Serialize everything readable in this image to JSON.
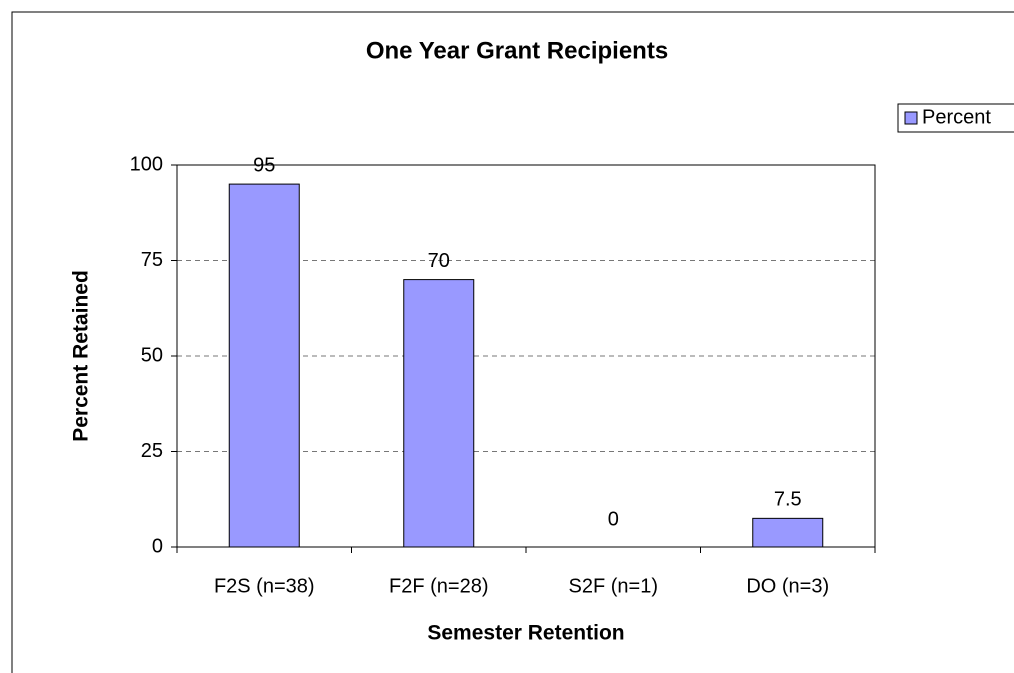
{
  "chart_data": {
    "type": "bar",
    "title": "One Year Grant Recipients",
    "x_label": "Semester Retention",
    "y_label": "Percent Retained",
    "categories": [
      "F2S (n=38)",
      "F2F (n=28)",
      "S2F (n=1)",
      "DO (n=3)"
    ],
    "series": [
      {
        "name": "Percent",
        "color": "#9999ff",
        "values": [
          95,
          70,
          0,
          7.5
        ]
      }
    ],
    "ylim": [
      0,
      100
    ],
    "yticks": [
      0,
      25,
      50,
      75,
      100
    ],
    "grid": true,
    "legend": "top-right"
  }
}
